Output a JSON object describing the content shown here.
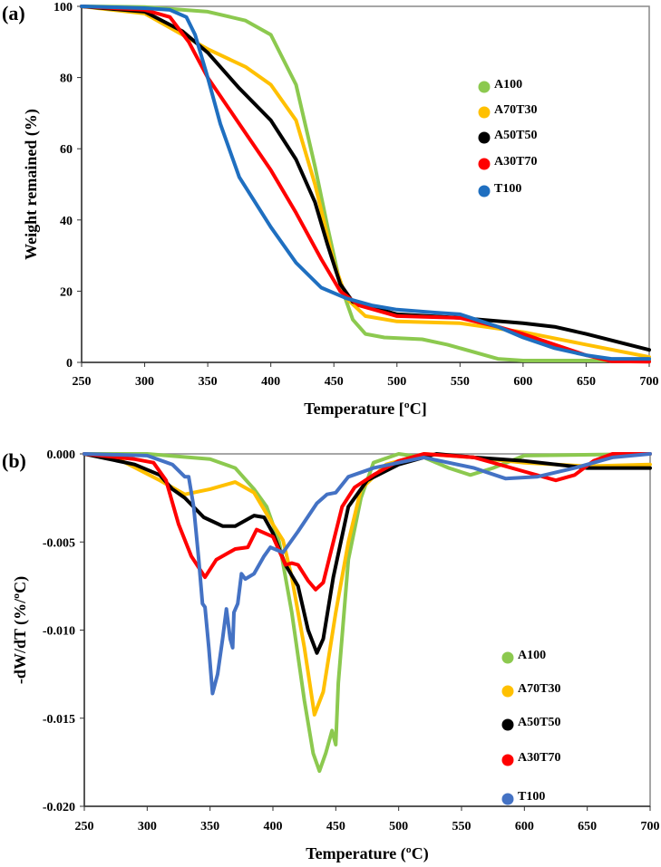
{
  "chart_data": [
    {
      "type": "line",
      "panel_label": "(a)",
      "xlabel": "Temperature [ºC]",
      "ylabel": "Weight remained (%)",
      "xlim": [
        250,
        700
      ],
      "ylim": [
        0,
        100
      ],
      "xticks": [
        250,
        300,
        350,
        400,
        450,
        500,
        550,
        600,
        650,
        700
      ],
      "yticks": [
        0,
        20,
        40,
        60,
        80,
        100
      ],
      "grid": false,
      "legend_position": "upper-right",
      "series": [
        {
          "name": "A100",
          "color": "#8cc94f",
          "x": [
            250,
            300,
            350,
            380,
            400,
            420,
            435,
            445,
            455,
            465,
            475,
            490,
            520,
            540,
            560,
            580,
            600,
            700
          ],
          "y": [
            100,
            99.8,
            98.5,
            96,
            92,
            78,
            55,
            38,
            22,
            12,
            8,
            7,
            6.5,
            5,
            3,
            1,
            0.5,
            0.5
          ]
        },
        {
          "name": "A70T30",
          "color": "#ffc000",
          "x": [
            250,
            300,
            330,
            350,
            380,
            400,
            420,
            435,
            450,
            460,
            475,
            500,
            550,
            580,
            600,
            650,
            700
          ],
          "y": [
            100,
            98,
            92,
            88,
            83,
            78,
            68,
            50,
            28,
            18,
            13,
            11.5,
            11,
            9.5,
            8.5,
            5,
            1.5
          ]
        },
        {
          "name": "A50T50",
          "color": "#000000",
          "x": [
            250,
            300,
            330,
            350,
            375,
            400,
            420,
            435,
            445,
            455,
            465,
            500,
            550,
            600,
            625,
            650,
            700
          ],
          "y": [
            100,
            98.5,
            93,
            87,
            77,
            68,
            57,
            45,
            33,
            22,
            17,
            13.5,
            12.5,
            11,
            10,
            8,
            3.5
          ]
        },
        {
          "name": "A30T70",
          "color": "#ff0000",
          "x": [
            250,
            300,
            320,
            335,
            350,
            375,
            400,
            420,
            440,
            455,
            470,
            500,
            550,
            580,
            600,
            625,
            650,
            670,
            700
          ],
          "y": [
            100,
            99,
            97,
            90,
            80,
            67,
            54,
            42,
            29,
            20,
            16,
            13,
            12.5,
            10,
            8,
            5,
            2,
            0.3,
            0.2
          ]
        },
        {
          "name": "T100",
          "color": "#1f6fc0",
          "x": [
            250,
            300,
            320,
            333,
            340,
            350,
            360,
            375,
            400,
            420,
            440,
            460,
            480,
            500,
            530,
            550,
            580,
            600,
            625,
            650,
            670,
            700
          ],
          "y": [
            100,
            99.5,
            99,
            97,
            92,
            80,
            67,
            52,
            38,
            28,
            21,
            18,
            16,
            14.8,
            14,
            13.5,
            10,
            7,
            4,
            2,
            1,
            1
          ]
        }
      ]
    },
    {
      "type": "line",
      "panel_label": "(b)",
      "xlabel": "Temperature (ºC)",
      "ylabel": "-dW/dT (%/ºC)",
      "xlim": [
        250,
        700
      ],
      "ylim": [
        -0.02,
        0.0
      ],
      "xticks": [
        250,
        300,
        350,
        400,
        450,
        500,
        550,
        600,
        650,
        700
      ],
      "yticks": [
        "0.000",
        "-0.005",
        "-0.010",
        "-0.015",
        "-0.020"
      ],
      "grid": false,
      "legend_position": "right",
      "series": [
        {
          "name": "A100",
          "color": "#8cc94f",
          "x": [
            250,
            300,
            350,
            370,
            385,
            395,
            405,
            415,
            425,
            432,
            437,
            442,
            447,
            450,
            452,
            460,
            470,
            480,
            500,
            520,
            540,
            557,
            575,
            600,
            700
          ],
          "y": [
            0,
            0,
            -0.0003,
            -0.0008,
            -0.002,
            -0.003,
            -0.005,
            -0.009,
            -0.014,
            -0.017,
            -0.018,
            -0.017,
            -0.0157,
            -0.0165,
            -0.013,
            -0.006,
            -0.0025,
            -0.0005,
            0,
            -0.0002,
            -0.0008,
            -0.0012,
            -0.0008,
            -0.0001,
            0
          ]
        },
        {
          "name": "A70T30",
          "color": "#ffc000",
          "x": [
            250,
            280,
            310,
            330,
            350,
            370,
            385,
            400,
            408,
            415,
            425,
            433,
            440,
            450,
            460,
            470,
            490,
            520,
            560,
            600,
            650,
            700
          ],
          "y": [
            0,
            -0.0004,
            -0.0015,
            -0.0023,
            -0.002,
            -0.0016,
            -0.0022,
            -0.004,
            -0.0049,
            -0.007,
            -0.011,
            -0.0148,
            -0.0135,
            -0.009,
            -0.005,
            -0.002,
            -0.0006,
            0,
            -0.0002,
            -0.0005,
            -0.0007,
            -0.0006
          ]
        },
        {
          "name": "A50T50",
          "color": "#000000",
          "x": [
            250,
            290,
            310,
            320,
            330,
            345,
            360,
            370,
            385,
            393,
            400,
            410,
            420,
            428,
            435,
            440,
            448,
            460,
            475,
            500,
            530,
            560,
            600,
            650,
            700
          ],
          "y": [
            0,
            -0.0006,
            -0.0012,
            -0.002,
            -0.0025,
            -0.0036,
            -0.0041,
            -0.0041,
            -0.0035,
            -0.0036,
            -0.0045,
            -0.0063,
            -0.0075,
            -0.01,
            -0.0113,
            -0.0105,
            -0.007,
            -0.003,
            -0.0015,
            -0.0006,
            0,
            -0.0002,
            -0.0004,
            -0.0008,
            -0.0008
          ]
        },
        {
          "name": "A30T70",
          "color": "#ff0000",
          "x": [
            250,
            290,
            305,
            315,
            325,
            335,
            346,
            355,
            370,
            380,
            387,
            400,
            410,
            415,
            420,
            428,
            434,
            440,
            448,
            455,
            465,
            480,
            500,
            520,
            560,
            600,
            625,
            640,
            655,
            670,
            700
          ],
          "y": [
            0,
            -0.0003,
            -0.0005,
            -0.0015,
            -0.004,
            -0.0058,
            -0.007,
            -0.006,
            -0.0054,
            -0.0053,
            -0.0043,
            -0.0047,
            -0.0063,
            -0.0062,
            -0.0063,
            -0.0072,
            -0.0077,
            -0.0073,
            -0.005,
            -0.003,
            -0.0019,
            -0.0012,
            -0.0004,
            0,
            -0.0002,
            -0.001,
            -0.0015,
            -0.0012,
            -0.0004,
            0,
            0
          ]
        },
        {
          "name": "T100",
          "color": "#4472c4",
          "x": [
            250,
            300,
            320,
            330,
            333,
            337,
            341,
            344,
            346,
            349,
            352,
            356,
            360,
            363,
            366,
            368,
            369,
            372,
            375,
            378,
            385,
            393,
            398,
            408,
            420,
            435,
            443,
            450,
            460,
            480,
            500,
            520,
            560,
            585,
            610,
            640,
            670,
            700
          ],
          "y": [
            0,
            -0.0001,
            -0.0006,
            -0.0013,
            -0.0013,
            -0.003,
            -0.006,
            -0.0085,
            -0.0087,
            -0.011,
            -0.0136,
            -0.0125,
            -0.0105,
            -0.0088,
            -0.0105,
            -0.011,
            -0.009,
            -0.0085,
            -0.0068,
            -0.0071,
            -0.0068,
            -0.0058,
            -0.0053,
            -0.0056,
            -0.0044,
            -0.0028,
            -0.0023,
            -0.0022,
            -0.0013,
            -0.0008,
            -0.0005,
            -0.0002,
            -0.0008,
            -0.0014,
            -0.0013,
            -0.0008,
            -0.0002,
            0
          ]
        }
      ]
    }
  ]
}
